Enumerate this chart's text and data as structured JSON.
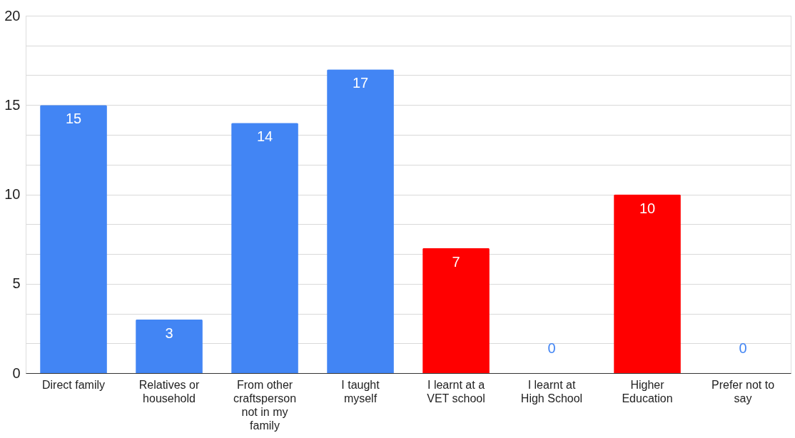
{
  "chart_data": {
    "type": "bar",
    "categories": [
      "Direct family",
      "Relatives or household",
      "From other craftsperson not in my family",
      "I taught myself",
      "I learnt at a VET school",
      "I learnt at High School",
      "Higher Education",
      "Prefer not to say"
    ],
    "values": [
      15,
      3,
      14,
      17,
      7,
      0,
      10,
      0
    ],
    "colors": [
      "#4285f4",
      "#4285f4",
      "#4285f4",
      "#4285f4",
      "#ff0000",
      "#4285f4",
      "#ff0000",
      "#4285f4"
    ],
    "ylim": [
      0,
      20
    ],
    "yticks": [
      0,
      {
        "value": 1.67,
        "label": null
      },
      {
        "value": 3.33,
        "label": null
      },
      5,
      {
        "value": 6.67,
        "label": null
      },
      {
        "value": 8.33,
        "label": null
      },
      10,
      {
        "value": 11.67,
        "label": null
      },
      {
        "value": 13.33,
        "label": null
      },
      15,
      {
        "value": 16.67,
        "label": null
      },
      {
        "value": 18.33,
        "label": null
      },
      20
    ],
    "grid": "y",
    "data_labels": true
  }
}
